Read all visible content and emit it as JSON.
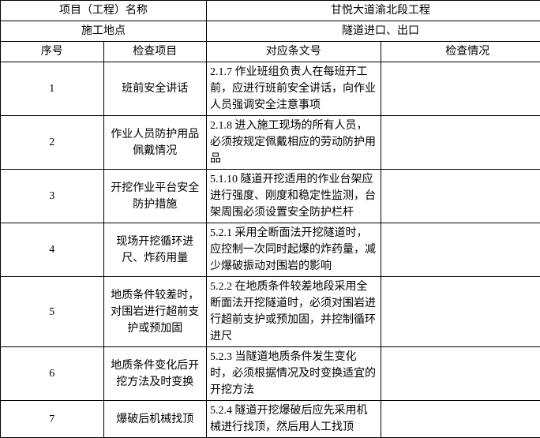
{
  "header": {
    "project_name_label": "项目（工程）名称",
    "project_name_value": "甘悦大道渝北段工程",
    "location_label": "施工地点",
    "location_value": "隧道进口、出口"
  },
  "columns": {
    "seq": "序号",
    "item": "检查项目",
    "ref": "对应条文号",
    "status": "检查情况"
  },
  "rows": [
    {
      "seq": "1",
      "item": "班前安全讲话",
      "ref": "2.1.7 作业班组负责人在每班开工前，应进行班前安全讲话，向作业人员强调安全注意事项",
      "status": ""
    },
    {
      "seq": "2",
      "item": "作业人员防护用品佩戴情况",
      "ref": "2.1.8 进入施工现场的所有人员，必须按规定佩戴相应的劳动防护用品",
      "status": ""
    },
    {
      "seq": "3",
      "item": "开挖作业平台安全防护措施",
      "ref": "5.1.10 隧道开挖适用的作业台架应进行强度、刚度和稳定性监测，台架周围必须设置安全防护栏杆",
      "status": ""
    },
    {
      "seq": "4",
      "item": "现场开挖循环进尺、炸药用量",
      "ref": "5.2.1 采用全断面法开挖隧道时，应控制一次同时起爆的炸药量，减少爆破振动对围岩的影响",
      "status": ""
    },
    {
      "seq": "5",
      "item": "地质条件较差时，对围岩进行超前支护或预加固",
      "ref": "5.2.2 在地质条件较差地段采用全断面法开挖隧道时，必须对围岩进行超前支护或预加固，并控制循环进尺",
      "status": ""
    },
    {
      "seq": "6",
      "item": "地质条件变化后开挖方法及时变换",
      "ref": "5.2.3 当隧道地质条件发生变化时，必须根据情况及时变换适宜的开挖方法",
      "status": ""
    },
    {
      "seq": "7",
      "item": "爆破后机械找顶",
      "ref": "5.2.4 隧道开挖爆破后应先采用机械进行找顶，然后用人工找顶",
      "status": ""
    }
  ]
}
